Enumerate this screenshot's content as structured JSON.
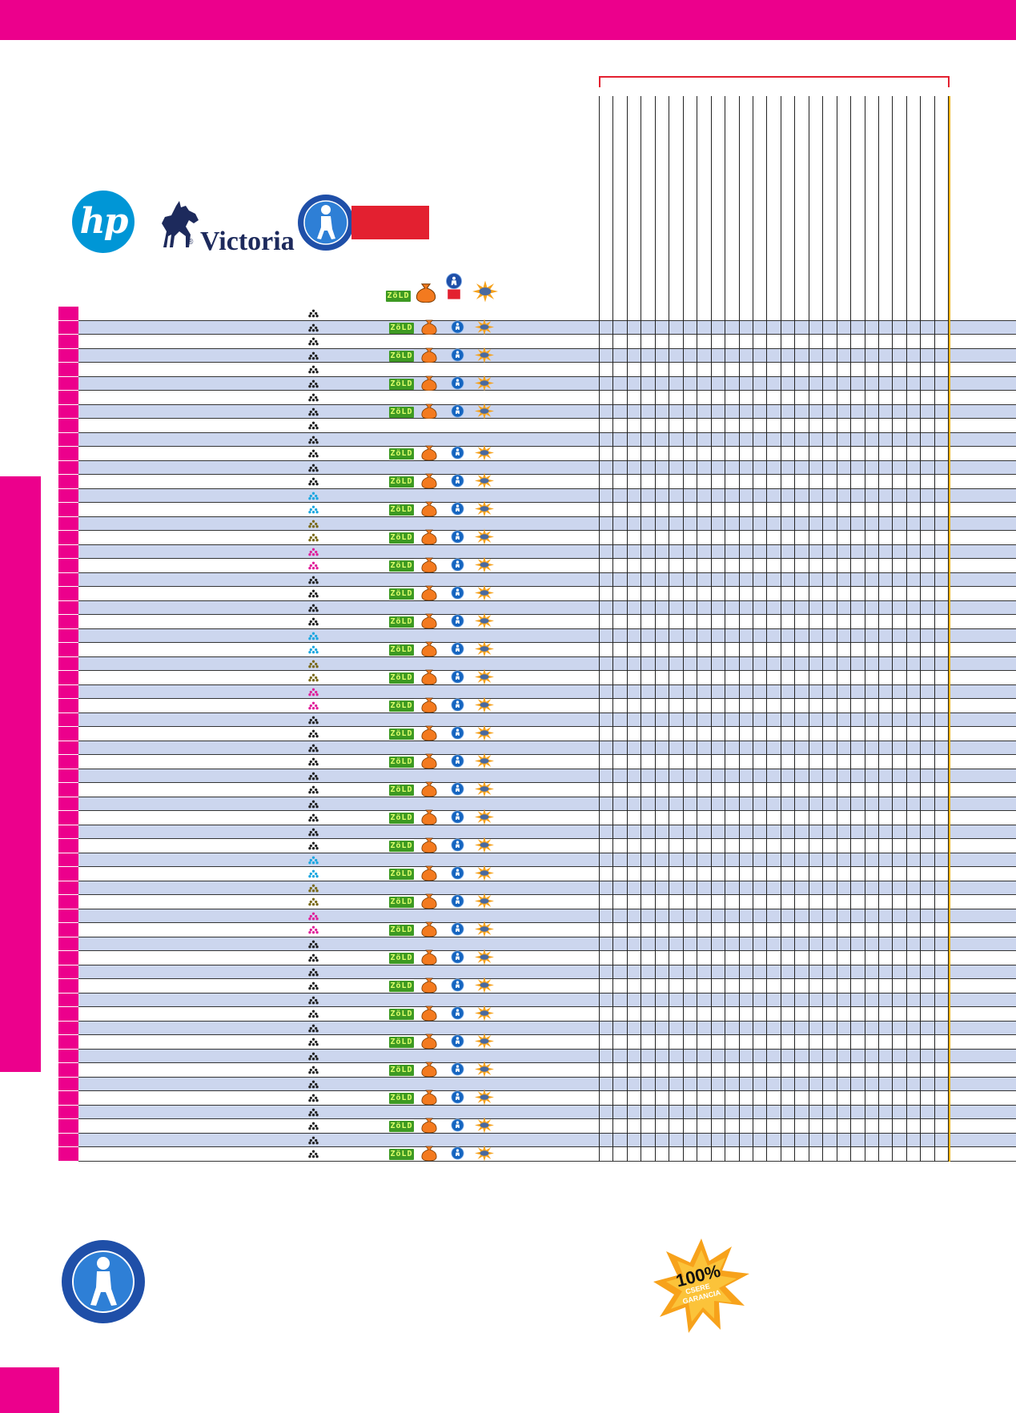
{
  "colors": {
    "accent": "#ec008c",
    "row_band": "#ccd6ee",
    "bracket": "#e32030",
    "last_column_line": "#f5b400",
    "hp_blue": "#0096d6",
    "zold_green": "#3e9a23",
    "bag_orange": "#f37a1f",
    "badge_blue": "#1565c0"
  },
  "logos": {
    "hp": "hp",
    "victoria": "Victoria",
    "victoria_registered": "®"
  },
  "legend_icons": {
    "zold": "ZöLD",
    "bag": "money-bag-icon",
    "kid": "kid-badge-icon",
    "star": "starburst-icon"
  },
  "guarantee": {
    "big": "100%",
    "line1": "CSERE",
    "line2": "GARANCIA"
  },
  "rows": [
    {
      "tri": "black",
      "icons": false
    },
    {
      "tri": "black",
      "icons": true
    },
    {
      "tri": "black",
      "icons": false
    },
    {
      "tri": "black",
      "icons": true
    },
    {
      "tri": "black",
      "icons": false
    },
    {
      "tri": "black",
      "icons": true
    },
    {
      "tri": "black",
      "icons": false
    },
    {
      "tri": "black",
      "icons": true
    },
    {
      "tri": "black",
      "icons": false
    },
    {
      "tri": "black",
      "icons": false
    },
    {
      "tri": "black",
      "icons": true
    },
    {
      "tri": "black",
      "icons": false
    },
    {
      "tri": "black",
      "icons": true
    },
    {
      "tri": "cyan",
      "icons": false
    },
    {
      "tri": "cyan",
      "icons": true
    },
    {
      "tri": "olive",
      "icons": false
    },
    {
      "tri": "olive",
      "icons": true
    },
    {
      "tri": "magenta",
      "icons": false
    },
    {
      "tri": "magenta",
      "icons": true
    },
    {
      "tri": "black",
      "icons": false
    },
    {
      "tri": "black",
      "icons": true
    },
    {
      "tri": "black",
      "icons": false
    },
    {
      "tri": "black",
      "icons": true
    },
    {
      "tri": "cyan",
      "icons": false
    },
    {
      "tri": "cyan",
      "icons": true
    },
    {
      "tri": "olive",
      "icons": false
    },
    {
      "tri": "olive",
      "icons": true
    },
    {
      "tri": "magenta",
      "icons": false
    },
    {
      "tri": "magenta",
      "icons": true
    },
    {
      "tri": "black",
      "icons": false
    },
    {
      "tri": "black",
      "icons": true
    },
    {
      "tri": "black",
      "icons": false
    },
    {
      "tri": "black",
      "icons": true
    },
    {
      "tri": "black",
      "icons": false
    },
    {
      "tri": "black",
      "icons": true
    },
    {
      "tri": "black",
      "icons": false
    },
    {
      "tri": "black",
      "icons": true
    },
    {
      "tri": "black",
      "icons": false
    },
    {
      "tri": "black",
      "icons": true
    },
    {
      "tri": "cyan",
      "icons": false
    },
    {
      "tri": "cyan",
      "icons": true
    },
    {
      "tri": "olive",
      "icons": false
    },
    {
      "tri": "olive",
      "icons": true
    },
    {
      "tri": "magenta",
      "icons": false
    },
    {
      "tri": "magenta",
      "icons": true
    },
    {
      "tri": "black",
      "icons": false
    },
    {
      "tri": "black",
      "icons": true
    },
    {
      "tri": "black",
      "icons": false
    },
    {
      "tri": "black",
      "icons": true
    },
    {
      "tri": "black",
      "icons": false
    },
    {
      "tri": "black",
      "icons": true
    },
    {
      "tri": "black",
      "icons": false
    },
    {
      "tri": "black",
      "icons": true
    },
    {
      "tri": "black",
      "icons": false
    },
    {
      "tri": "black",
      "icons": true
    },
    {
      "tri": "black",
      "icons": false
    },
    {
      "tri": "black",
      "icons": true
    },
    {
      "tri": "black",
      "icons": false
    },
    {
      "tri": "black",
      "icons": true
    },
    {
      "tri": "black",
      "icons": false
    },
    {
      "tri": "black",
      "icons": true
    }
  ],
  "tri_colors": {
    "black": "#222222",
    "cyan": "#1aa7e0",
    "olive": "#7a6a18",
    "magenta": "#e0209a"
  }
}
